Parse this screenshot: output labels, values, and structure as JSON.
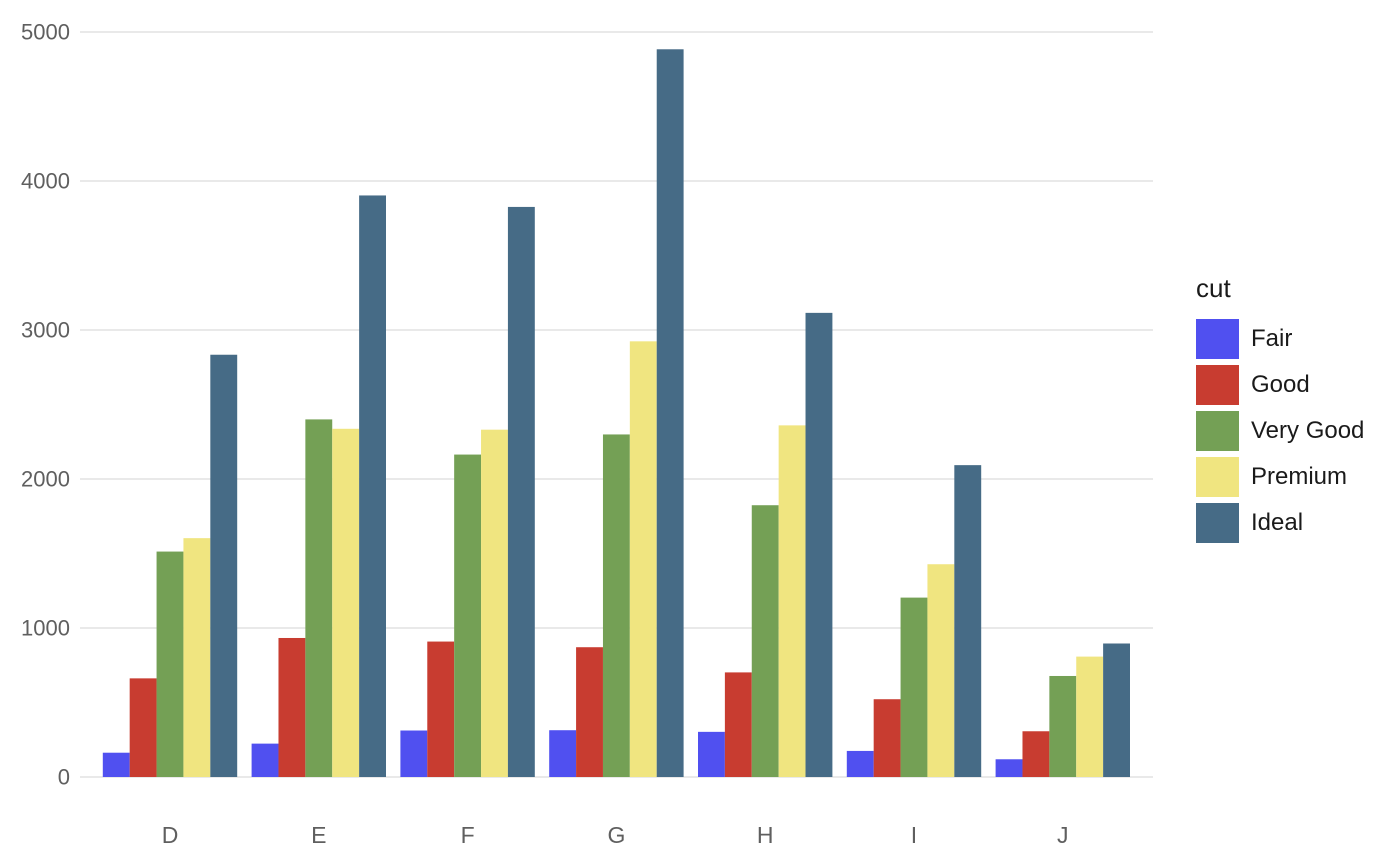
{
  "chart_data": {
    "type": "bar",
    "variant": "grouped",
    "title": "",
    "xlabel": "",
    "ylabel": "",
    "categories": [
      "D",
      "E",
      "F",
      "G",
      "H",
      "I",
      "J"
    ],
    "series": [
      {
        "name": "Fair",
        "color": "#5050F0",
        "values": [
          163,
          224,
          312,
          314,
          303,
          175,
          119
        ]
      },
      {
        "name": "Good",
        "color": "#C83C30",
        "values": [
          662,
          933,
          909,
          871,
          702,
          522,
          307
        ]
      },
      {
        "name": "Very Good",
        "color": "#74A055",
        "values": [
          1513,
          2400,
          2164,
          2299,
          1824,
          1204,
          678
        ]
      },
      {
        "name": "Premium",
        "color": "#F0E580",
        "values": [
          1603,
          2337,
          2331,
          2924,
          2360,
          1428,
          808
        ]
      },
      {
        "name": "Ideal",
        "color": "#466B86",
        "values": [
          2834,
          3903,
          3826,
          4884,
          3115,
          2093,
          896
        ]
      }
    ],
    "ylim": [
      0,
      5000
    ],
    "yticks": [
      0,
      1000,
      2000,
      3000,
      4000,
      5000
    ],
    "grid": "horizontal",
    "legend": {
      "title": "cut",
      "position": "right"
    }
  },
  "colors": {
    "background": "#ffffff",
    "gridline": "#e9e9e9",
    "axis_text": "#5f5f5f",
    "legend_text": "#1a1a1a"
  }
}
